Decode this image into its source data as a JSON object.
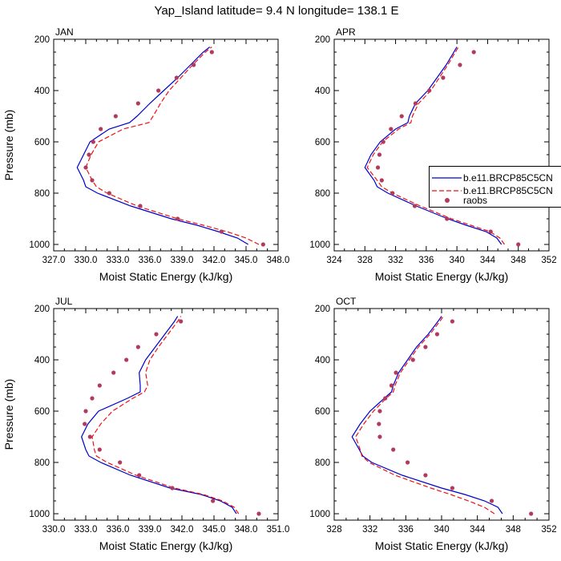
{
  "figure_title": "Yap_Island  latitude= 9.4 N longitude= 138.1 E",
  "colors": {
    "model1": "#0000cc",
    "model2": "#ee1111",
    "obs": "#b33a5a",
    "axis": "#000000"
  },
  "legend": {
    "placement": "right of APR panel",
    "entries": [
      {
        "label": "b.e11.BRCP85C5CN",
        "style": "solid-line",
        "color": "#0000cc"
      },
      {
        "label": "b.e11.BRCP85C5CN",
        "style": "dashed-line",
        "color": "#ee1111"
      },
      {
        "label": "raobs",
        "style": "dot",
        "color": "#b33a5a"
      }
    ]
  },
  "chart_data": [
    {
      "type": "line",
      "panel_label": "JAN",
      "xlabel": "Moist Static Energy (kJ/kg)",
      "ylabel": "Pressure (mb)",
      "xlim": [
        327,
        348
      ],
      "ylim": [
        200,
        1025
      ],
      "y_inverted": true,
      "xticks": [
        "327.0",
        "330.0",
        "333.0",
        "336.0",
        "339.0",
        "342.0",
        "345.0",
        "348.0"
      ],
      "xtick_values": [
        327,
        330,
        333,
        336,
        339,
        342,
        345,
        348
      ],
      "yticks": [
        "200",
        "400",
        "600",
        "800",
        "1000"
      ],
      "ytick_values": [
        200,
        400,
        600,
        800,
        1000
      ],
      "series": [
        {
          "legend_index": 0,
          "style": "solid",
          "p": [
            1000,
            975,
            950,
            925,
            900,
            850,
            800,
            775,
            750,
            700,
            650,
            600,
            550,
            525,
            500,
            450,
            400,
            350,
            300,
            250,
            230
          ],
          "x": [
            345.2,
            344.2,
            342.4,
            340.4,
            338.0,
            334.2,
            331.1,
            330.0,
            329.8,
            329.2,
            329.8,
            330.4,
            332.2,
            334.1,
            334.8,
            336.0,
            337.3,
            338.6,
            339.8,
            341.0,
            341.6
          ]
        },
        {
          "legend_index": 1,
          "style": "dashed",
          "p": [
            1000,
            975,
            950,
            925,
            900,
            850,
            800,
            775,
            750,
            700,
            650,
            600,
            550,
            525,
            500,
            450,
            400,
            350,
            300,
            250,
            230
          ],
          "x": [
            346.2,
            345.0,
            343.2,
            341.0,
            338.6,
            334.8,
            332.0,
            331.0,
            330.6,
            330.0,
            330.5,
            331.2,
            333.5,
            335.9,
            336.3,
            337.0,
            337.8,
            338.9,
            340.0,
            341.2,
            341.8
          ]
        }
      ],
      "obs": {
        "legend_index": 2,
        "p": [
          1000,
          950,
          900,
          850,
          800,
          750,
          700,
          650,
          600,
          550,
          500,
          450,
          400,
          350,
          300,
          250
        ],
        "x": [
          346.6,
          342.7,
          338.6,
          335.1,
          332.2,
          330.6,
          330.0,
          330.3,
          330.7,
          331.4,
          332.8,
          334.9,
          336.8,
          338.5,
          340.1,
          341.8
        ]
      }
    },
    {
      "type": "line",
      "panel_label": "APR",
      "xlabel": "Moist Static Energy (kJ/kg)",
      "ylabel": "",
      "xlim": [
        324,
        352
      ],
      "ylim": [
        200,
        1025
      ],
      "y_inverted": true,
      "xticks": [
        "324",
        "328",
        "332",
        "336",
        "340",
        "344",
        "348",
        "352"
      ],
      "xtick_values": [
        324,
        328,
        332,
        336,
        340,
        344,
        348,
        352
      ],
      "yticks": [
        "200",
        "400",
        "600",
        "800",
        "1000"
      ],
      "ytick_values": [
        200,
        400,
        600,
        800,
        1000
      ],
      "series": [
        {
          "legend_index": 0,
          "style": "solid",
          "p": [
            1000,
            975,
            950,
            925,
            900,
            850,
            800,
            775,
            750,
            700,
            650,
            600,
            550,
            525,
            500,
            450,
            400,
            350,
            300,
            250,
            230
          ],
          "x": [
            345.8,
            345.2,
            343.8,
            341.2,
            338.8,
            334.7,
            331.0,
            329.6,
            329.2,
            328.0,
            328.8,
            330.0,
            332.0,
            333.6,
            333.8,
            334.6,
            336.2,
            337.4,
            338.6,
            339.6,
            340.0
          ]
        },
        {
          "legend_index": 1,
          "style": "dashed",
          "p": [
            1000,
            975,
            950,
            925,
            900,
            850,
            800,
            775,
            750,
            700,
            650,
            600,
            550,
            525,
            500,
            450,
            400,
            350,
            300,
            250,
            230
          ],
          "x": [
            346.2,
            345.6,
            344.3,
            341.8,
            339.3,
            335.2,
            331.6,
            330.2,
            329.6,
            328.3,
            329.1,
            330.3,
            332.4,
            334.0,
            334.2,
            335.0,
            336.6,
            337.7,
            338.8,
            339.8,
            340.2
          ]
        }
      ],
      "obs": {
        "legend_index": 2,
        "p": [
          1000,
          950,
          900,
          850,
          800,
          750,
          700,
          650,
          600,
          550,
          500,
          450,
          400,
          350,
          300,
          250
        ],
        "x": [
          348.0,
          344.4,
          338.7,
          334.5,
          331.6,
          330.2,
          329.7,
          329.9,
          330.4,
          331.4,
          332.8,
          334.6,
          336.4,
          338.2,
          340.4,
          342.2
        ]
      }
    },
    {
      "type": "line",
      "panel_label": "JUL",
      "xlabel": "Moist Static Energy (kJ/kg)",
      "ylabel": "Pressure (mb)",
      "xlim": [
        330,
        351
      ],
      "ylim": [
        200,
        1025
      ],
      "y_inverted": true,
      "xticks": [
        "330.0",
        "333.0",
        "336.0",
        "339.0",
        "342.0",
        "345.0",
        "348.0",
        "351.0"
      ],
      "xtick_values": [
        330,
        333,
        336,
        339,
        342,
        345,
        348,
        351
      ],
      "yticks": [
        "200",
        "400",
        "600",
        "800",
        "1000"
      ],
      "ytick_values": [
        200,
        400,
        600,
        800,
        1000
      ],
      "series": [
        {
          "legend_index": 0,
          "style": "solid",
          "p": [
            1000,
            975,
            950,
            925,
            900,
            850,
            800,
            775,
            750,
            700,
            650,
            600,
            550,
            525,
            500,
            450,
            400,
            350,
            300,
            250,
            230
          ],
          "x": [
            347.1,
            346.7,
            345.6,
            343.8,
            340.9,
            337.2,
            334.4,
            333.3,
            333.0,
            332.6,
            333.2,
            334.2,
            336.9,
            338.1,
            338.1,
            338.0,
            338.6,
            339.5,
            340.4,
            341.3,
            341.6
          ]
        },
        {
          "legend_index": 1,
          "style": "dashed",
          "p": [
            1000,
            975,
            950,
            925,
            900,
            850,
            800,
            775,
            750,
            700,
            650,
            600,
            550,
            525,
            500,
            450,
            400,
            350,
            300,
            250,
            230
          ],
          "x": [
            347.3,
            346.9,
            345.8,
            344.0,
            341.3,
            337.7,
            335.0,
            334.0,
            333.8,
            333.6,
            334.4,
            335.5,
            337.4,
            338.5,
            338.8,
            338.6,
            339.0,
            339.8,
            340.7,
            341.6,
            341.9
          ]
        }
      ],
      "obs": {
        "legend_index": 2,
        "p": [
          1000,
          950,
          900,
          850,
          800,
          750,
          700,
          650,
          600,
          550,
          500,
          450,
          400,
          350,
          300,
          250
        ],
        "x": [
          349.2,
          344.9,
          341.1,
          338.0,
          336.2,
          334.3,
          333.4,
          332.9,
          333.0,
          333.6,
          334.3,
          335.6,
          336.8,
          337.9,
          339.6,
          341.9
        ]
      }
    },
    {
      "type": "line",
      "panel_label": "OCT",
      "xlabel": "Moist Static Energy (kJ/kg)",
      "ylabel": "",
      "xlim": [
        328,
        352
      ],
      "ylim": [
        200,
        1025
      ],
      "y_inverted": true,
      "xticks": [
        "328",
        "332",
        "336",
        "340",
        "344",
        "348",
        "352"
      ],
      "xtick_values": [
        328,
        332,
        336,
        340,
        344,
        348,
        352
      ],
      "yticks": [
        "200",
        "400",
        "600",
        "800",
        "1000"
      ],
      "ytick_values": [
        200,
        400,
        600,
        800,
        1000
      ],
      "series": [
        {
          "legend_index": 0,
          "style": "solid",
          "p": [
            1000,
            975,
            950,
            925,
            900,
            850,
            800,
            775,
            750,
            700,
            650,
            600,
            550,
            525,
            500,
            450,
            400,
            350,
            300,
            250,
            230
          ],
          "x": [
            346.8,
            346.3,
            344.8,
            342.6,
            340.0,
            335.6,
            332.2,
            331.2,
            330.8,
            330.0,
            330.9,
            332.0,
            333.6,
            334.4,
            334.6,
            335.2,
            336.2,
            337.2,
            338.5,
            339.6,
            340.0
          ]
        },
        {
          "legend_index": 1,
          "style": "dashed",
          "p": [
            1000,
            975,
            950,
            925,
            900,
            850,
            800,
            775,
            750,
            700,
            650,
            600,
            550,
            525,
            500,
            450,
            400,
            350,
            300,
            250,
            230
          ],
          "x": [
            345.9,
            344.8,
            343.0,
            341.0,
            338.8,
            334.8,
            331.9,
            331.1,
            330.9,
            330.4,
            331.3,
            332.4,
            333.8,
            334.6,
            334.8,
            335.4,
            336.4,
            337.4,
            338.7,
            339.8,
            340.2
          ]
        }
      ],
      "obs": {
        "legend_index": 2,
        "p": [
          1000,
          950,
          900,
          850,
          800,
          750,
          700,
          650,
          600,
          550,
          500,
          450,
          400,
          350,
          300,
          250
        ],
        "x": [
          350.0,
          345.6,
          341.2,
          338.2,
          336.2,
          334.6,
          333.1,
          333.0,
          333.1,
          333.7,
          334.4,
          334.9,
          336.8,
          338.2,
          339.5,
          341.2
        ]
      }
    }
  ]
}
